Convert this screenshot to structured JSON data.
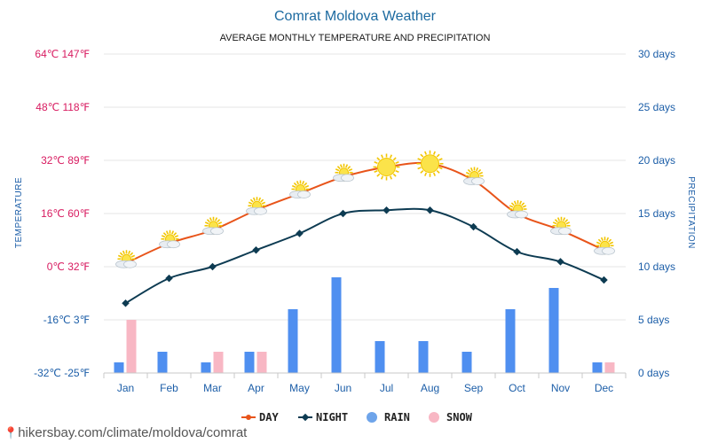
{
  "chart_data": {
    "type": "line+bar",
    "title": "Comrat Moldova Weather",
    "subtitle": "AVERAGE MONTHLY TEMPERATURE AND PRECIPITATION",
    "y_left_label": "TEMPERATURE",
    "y_right_label": "PRECIPITATION",
    "categories": [
      "Jan",
      "Feb",
      "Mar",
      "Apr",
      "May",
      "Jun",
      "Jul",
      "Aug",
      "Sep",
      "Oct",
      "Nov",
      "Dec"
    ],
    "y_left_range_c": [
      -32,
      64
    ],
    "y_left_ticks": [
      "64℃ 147℉",
      "48℃ 118℉",
      "32℃ 89℉",
      "16℃ 60℉",
      "0℃ 32℉",
      "-16℃ 3℉",
      "-32℃ -25℉"
    ],
    "y_left_tick_values": [
      64,
      48,
      32,
      16,
      0,
      -16,
      -32
    ],
    "y_right_range_days": [
      0,
      30
    ],
    "y_right_ticks": [
      "30 days",
      "25 days",
      "20 days",
      "15 days",
      "10 days",
      "5 days",
      "0 days"
    ],
    "y_right_tick_values": [
      30,
      25,
      20,
      15,
      10,
      5,
      0
    ],
    "series": [
      {
        "name": "DAY",
        "kind": "line",
        "color": "#e8541a",
        "values": [
          1,
          7,
          11,
          17,
          22,
          27,
          30,
          31,
          26,
          16,
          11,
          5
        ],
        "icons": [
          "partly-cloudy",
          "partly-cloudy",
          "partly-cloudy",
          "partly-cloudy",
          "partly-cloudy",
          "partly-cloudy",
          "sunny",
          "sunny",
          "partly-cloudy",
          "partly-cloudy",
          "partly-cloudy",
          "partly-cloudy"
        ]
      },
      {
        "name": "NIGHT",
        "kind": "line",
        "color": "#0d3b52",
        "values": [
          -11,
          -3.5,
          0,
          5,
          10,
          16,
          17,
          17,
          12,
          4.5,
          1.5,
          -4
        ]
      },
      {
        "name": "RAIN",
        "kind": "bar",
        "unit": "days",
        "color": "#4f8ff0",
        "values": [
          1,
          2,
          1,
          2,
          6,
          9,
          3,
          3,
          2,
          6,
          8,
          1
        ]
      },
      {
        "name": "SNOW",
        "kind": "bar",
        "unit": "days",
        "color": "#f8b7c4",
        "values": [
          5,
          0,
          2,
          2,
          0,
          0,
          0,
          0,
          0,
          0,
          0,
          1
        ]
      }
    ],
    "legend": [
      {
        "label": "DAY",
        "color": "#e8541a",
        "marker": "line"
      },
      {
        "label": "NIGHT",
        "color": "#0d3b52",
        "marker": "line"
      },
      {
        "label": "RAIN",
        "color": "#6ea4ea",
        "marker": "dot"
      },
      {
        "label": "SNOW",
        "color": "#f8b7c4",
        "marker": "dot"
      }
    ],
    "legend_position": "bottom-center",
    "grid": true
  },
  "footer": {
    "source": "hikersbay.com/climate/moldova/comrat"
  }
}
